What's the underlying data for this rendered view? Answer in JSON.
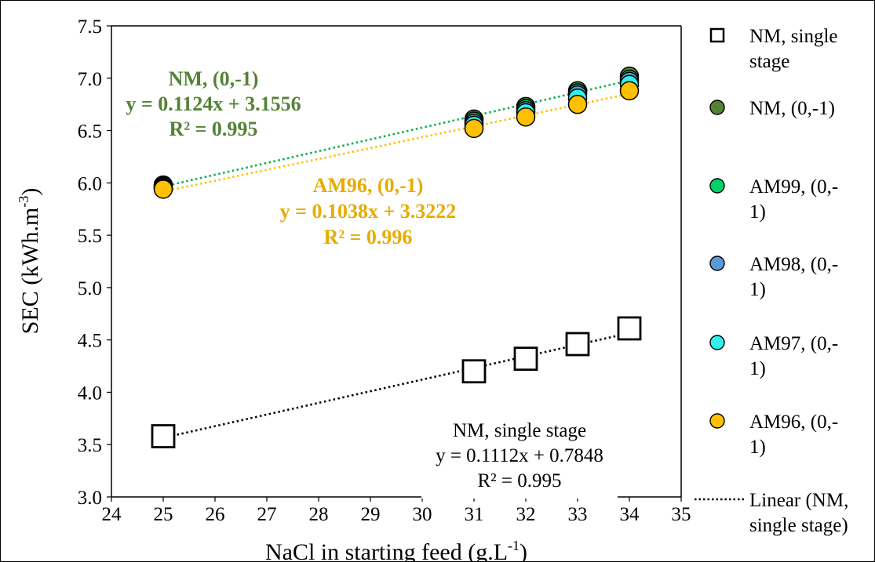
{
  "chart_data": {
    "type": "scatter",
    "xlabel": "NaCl in starting feed (g.L",
    "xlabel_sup": "-1",
    "xlabel_end": ")",
    "ylabel": "SEC  (kWh.m",
    "ylabel_sup": "-3",
    "ylabel_end": ")",
    "xlim": [
      24,
      35
    ],
    "ylim": [
      3.0,
      7.5
    ],
    "x_ticks": [
      "24",
      "25",
      "26",
      "27",
      "28",
      "29",
      "30",
      "31",
      "32",
      "33",
      "34",
      "35"
    ],
    "y_ticks": [
      "3.0",
      "3.5",
      "4.0",
      "4.5",
      "5.0",
      "5.5",
      "6.0",
      "6.5",
      "7.0",
      "7.5"
    ],
    "grid": false,
    "legend_position": "right",
    "series": [
      {
        "name": "NM, single stage",
        "marker": "square",
        "fill": "#ffffff",
        "stroke": "#000000",
        "x": [
          25,
          31,
          32,
          33,
          34
        ],
        "y": [
          3.58,
          4.2,
          4.32,
          4.46,
          4.61
        ]
      },
      {
        "name": "NM, (0,-1)",
        "marker": "circle",
        "fill": "#548235",
        "stroke": "#000000",
        "x": [
          25,
          31,
          32,
          33,
          34
        ],
        "y": [
          5.98,
          6.61,
          6.73,
          6.88,
          7.02
        ]
      },
      {
        "name": "AM99, (0,-1)",
        "marker": "circle",
        "fill": "#00d26a",
        "stroke": "#000000",
        "x": [
          25,
          31,
          32,
          33,
          34
        ],
        "y": [
          5.97,
          6.59,
          6.71,
          6.86,
          6.99
        ]
      },
      {
        "name": "AM98, (0,-1)",
        "marker": "circle",
        "fill": "#5b9bd5",
        "stroke": "#000000",
        "x": [
          25,
          31,
          32,
          33,
          34
        ],
        "y": [
          5.96,
          6.57,
          6.69,
          6.84,
          6.97
        ]
      },
      {
        "name": "AM97, (0,-1)",
        "marker": "circle",
        "fill": "#33f0ea",
        "stroke": "#000000",
        "x": [
          25,
          31,
          32,
          33,
          34
        ],
        "y": [
          5.95,
          6.55,
          6.67,
          6.81,
          6.94
        ]
      },
      {
        "name": "AM96, (0,-1)",
        "marker": "circle",
        "fill": "#ffc000",
        "stroke": "#000000",
        "x": [
          25,
          31,
          32,
          33,
          34
        ],
        "y": [
          5.94,
          6.52,
          6.63,
          6.75,
          6.88
        ]
      }
    ],
    "trendlines": [
      {
        "name": "Linear (NM, single stage)",
        "slope": 0.1112,
        "intercept": 0.7848,
        "color": "#000000",
        "x_range": [
          25,
          34
        ]
      },
      {
        "name": "NM, (0,-1)",
        "slope": 0.1124,
        "intercept": 3.1556,
        "color": "#00b050",
        "x_range": [
          25,
          34
        ]
      },
      {
        "name": "AM96, (0,-1)",
        "slope": 0.1038,
        "intercept": 3.3222,
        "color": "#ffc000",
        "x_range": [
          25,
          34
        ]
      }
    ],
    "annotations": {
      "nm": {
        "line1": "NM, (0,-1)",
        "line2": "y = 0.1124x + 3.1556",
        "line3": "R² = 0.995",
        "color": "#548235"
      },
      "am96": {
        "line1": "AM96, (0,-1)",
        "line2": "y = 0.1038x + 3.3222",
        "line3": "R² = 0.996",
        "color": "#e6ac00"
      },
      "single": {
        "line1": "NM, single stage",
        "line2": "y = 0.1112x + 0.7848",
        "line3": "R² = 0.995",
        "color": "#000000"
      }
    },
    "legend": [
      {
        "line1": "NM, single",
        "line2": "stage",
        "kind": "square",
        "fill": "#ffffff"
      },
      {
        "line1": "NM, (0,-1)",
        "line2": "",
        "kind": "circle",
        "fill": "#548235"
      },
      {
        "line1": "AM99, (0,-",
        "line2": "1)",
        "kind": "circle",
        "fill": "#00d26a"
      },
      {
        "line1": "AM98, (0,-",
        "line2": "1)",
        "kind": "circle",
        "fill": "#5b9bd5"
      },
      {
        "line1": "AM97, (0,-",
        "line2": "1)",
        "kind": "circle",
        "fill": "#33f0ea"
      },
      {
        "line1": "AM96, (0,-",
        "line2": "1)",
        "kind": "circle",
        "fill": "#ffc000"
      },
      {
        "line1": "Linear (NM,",
        "line2": "single stage)",
        "kind": "dotted-line",
        "fill": "#000000"
      }
    ]
  }
}
